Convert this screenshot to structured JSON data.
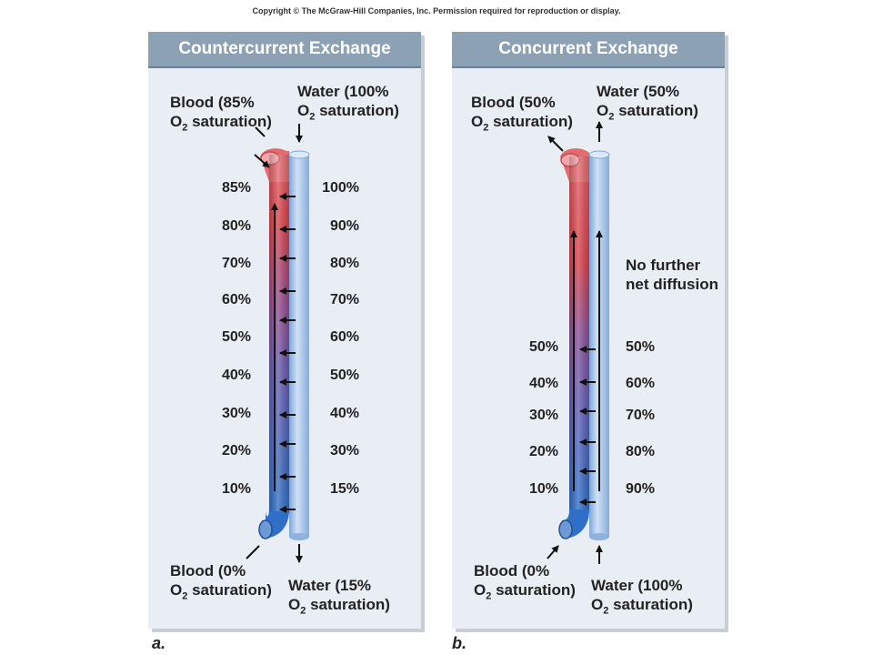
{
  "copyright": "Copyright © The McGraw-Hill Companies, Inc. Permission required for reproduction or display.",
  "panel_a": {
    "title": "Countercurrent Exchange",
    "blood_in": {
      "line1": "Blood (85%",
      "line2_pre": "O",
      "line2_sub": "2",
      "line2_post": " saturation)"
    },
    "water_in": {
      "line1": "Water (100%",
      "line2_pre": "O",
      "line2_sub": "2",
      "line2_post": " saturation)"
    },
    "blood_out": {
      "line1": "Blood (0%",
      "line2_pre": "O",
      "line2_sub": "2",
      "line2_post": " saturation)"
    },
    "water_out": {
      "line1": "Water (15%",
      "line2_pre": "O",
      "line2_sub": "2",
      "line2_post": " saturation)"
    },
    "blood_values": [
      "85%",
      "80%",
      "70%",
      "60%",
      "50%",
      "40%",
      "30%",
      "20%",
      "10%"
    ],
    "water_values": [
      "100%",
      "90%",
      "80%",
      "70%",
      "60%",
      "50%",
      "40%",
      "30%",
      "15%"
    ],
    "letter": "a."
  },
  "panel_b": {
    "title": "Concurrent Exchange",
    "blood_out": {
      "line1": "Blood (50%",
      "line2_pre": "O",
      "line2_sub": "2",
      "line2_post": " saturation)"
    },
    "water_out": {
      "line1": "Water (50%",
      "line2_pre": "O",
      "line2_sub": "2",
      "line2_post": " saturation)"
    },
    "blood_in": {
      "line1": "Blood (0%",
      "line2_pre": "O",
      "line2_sub": "2",
      "line2_post": " saturation)"
    },
    "water_in": {
      "line1": "Water (100%",
      "line2_pre": "O",
      "line2_sub": "2",
      "line2_post": " saturation)"
    },
    "note_line1": "No further",
    "note_line2": "net diffusion",
    "blood_values": [
      "50%",
      "40%",
      "30%",
      "20%",
      "10%"
    ],
    "water_values": [
      "50%",
      "60%",
      "70%",
      "80%",
      "90%"
    ],
    "letter": "b."
  },
  "colors": {
    "blood_high": "#d9404a",
    "blood_low": "#2f6fc7",
    "water": "#a9c8ec",
    "panel": "#e9eef4",
    "title_bar": "#8da1b5"
  }
}
